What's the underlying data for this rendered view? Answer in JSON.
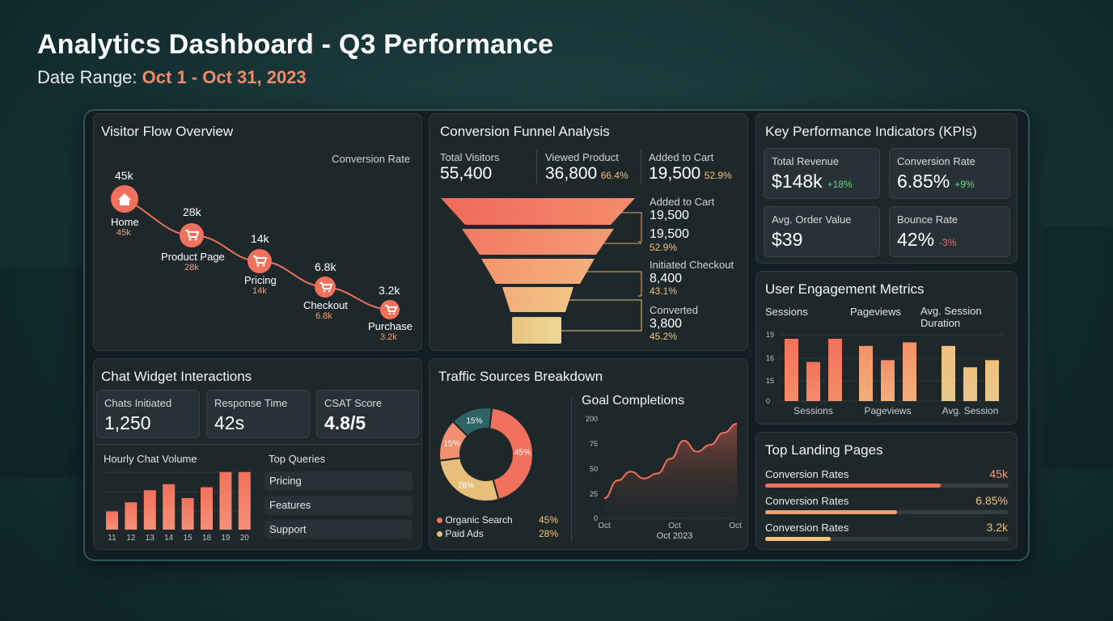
{
  "header": {
    "title": "Analytics Dashboard - Q3 Performance",
    "date_label": "Date Range:",
    "date_value": "Oct 1 - Oct 31, 2023"
  },
  "visitor_flow": {
    "title": "Visitor Flow Overview",
    "conversion_rate_label": "Conversion Rate",
    "steps": [
      {
        "name": "Home",
        "top": "45k",
        "sub": "45k",
        "icon": "home-icon"
      },
      {
        "name": "Product Page",
        "top": "28k",
        "sub": "28k",
        "icon": "cart-icon"
      },
      {
        "name": "Pricing",
        "top": "14k",
        "sub": "14k",
        "icon": "cart-icon"
      },
      {
        "name": "Checkout",
        "top": "6.8k",
        "sub": "6.8k",
        "icon": "cart-icon"
      },
      {
        "name": "Purchase",
        "top": "3.2k",
        "sub": "3.2k",
        "icon": "cart-icon"
      }
    ]
  },
  "funnel": {
    "title": "Conversion Funnel Analysis",
    "stats": [
      {
        "label": "Total Visitors",
        "value": "55,400",
        "pct": ""
      },
      {
        "label": "Viewed Product",
        "value": "36,800",
        "pct": "66.4%"
      },
      {
        "label": "Added to Cart",
        "value": "19,500",
        "pct": "52.9%"
      }
    ],
    "annotations": [
      {
        "label": "Added to Cart",
        "value1": "19,500",
        "value2": "19,500",
        "pct": "52.9%"
      },
      {
        "label": "Initiated Checkout",
        "value1": "8,400",
        "pct": "43.1%"
      },
      {
        "label": "Converted",
        "value1": "3,800",
        "pct": "45.2%"
      }
    ],
    "colors": [
      "#f2715c",
      "#f4866a",
      "#f5a27a",
      "#f2bc82",
      "#edd28a"
    ]
  },
  "kpis": {
    "title": "Key Performance Indicators (KPIs)",
    "cards": [
      {
        "label": "Total Revenue",
        "value": "$148k",
        "delta": "+18%",
        "tone": "green"
      },
      {
        "label": "Conversion Rate",
        "value": "6.85%",
        "delta": "+9%",
        "tone": "green"
      },
      {
        "label": "Avg. Order Value",
        "value": "$39",
        "delta": "",
        "tone": ""
      },
      {
        "label": "Bounce Rate",
        "value": "42%",
        "delta": "-3%",
        "tone": "red"
      }
    ]
  },
  "engagement": {
    "title": "User Engagement Metrics",
    "col_labels": [
      "Sessions",
      "Pageviews",
      "Avg. Session Duration"
    ],
    "col_label_lines": [
      "Sessions",
      "Pageviews",
      "Avg. Session",
      "Duration"
    ],
    "y_ticks": [
      "19",
      "16",
      "15",
      "0"
    ],
    "x_labels": [
      "Sessions",
      "Pageviews",
      "Avg. Session"
    ],
    "chart_data": {
      "type": "bar",
      "categories": [
        "Sessions",
        "Pageviews",
        "Avg. Session"
      ],
      "series": [
        {
          "values": [
            17.5,
            11,
            17.5
          ]
        },
        {
          "values": [
            15.5,
            11.5,
            16.5
          ]
        },
        {
          "values": [
            15.5,
            9.5,
            11.5
          ]
        }
      ],
      "ylim": [
        0,
        20
      ]
    }
  },
  "chat": {
    "title": "Chat Widget Interactions",
    "cards": [
      {
        "label": "Chats Initiated",
        "value": "1,250"
      },
      {
        "label": "Response Time",
        "value": "42s"
      },
      {
        "label": "CSAT Score",
        "value": "4.8/5"
      }
    ],
    "hourly_label": "Hourly Chat Volume",
    "top_queries_label": "Top Queries",
    "queries": [
      "Pricing",
      "Features",
      "Support"
    ],
    "chart_data": {
      "type": "bar",
      "categories": [
        "11",
        "12",
        "13",
        "14",
        "15",
        "18",
        "19",
        "20"
      ],
      "values": [
        3,
        4.5,
        6.5,
        7.5,
        5.2,
        7,
        9.5,
        9.5
      ],
      "ylim": [
        0,
        10
      ]
    }
  },
  "traffic": {
    "title": "Traffic Sources Breakdown",
    "legend": [
      {
        "name": "Organic Search",
        "value": "45%",
        "color": "#f2715c"
      },
      {
        "name": "Paid Ads",
        "value": "28%",
        "color": "#e8bf7a"
      }
    ],
    "chart_data": {
      "type": "pie",
      "categories": [
        "45%",
        "28%",
        "15%",
        "15%"
      ],
      "values": [
        45,
        28,
        15,
        15
      ],
      "colors": [
        "#f2715c",
        "#e8bf7a",
        "#f0906e",
        "#2f6467"
      ]
    }
  },
  "goals": {
    "title": "Goal Completions",
    "y_ticks": [
      "200",
      "75",
      "50",
      "25",
      "0"
    ],
    "x_ticks": [
      "Oct",
      "Oct",
      "Oct"
    ],
    "x_caption": "Oct 2023",
    "chart_data": {
      "type": "area",
      "x": [
        0,
        1,
        2,
        3,
        4,
        5,
        6,
        7,
        8,
        9,
        10
      ],
      "values": [
        20,
        38,
        47,
        40,
        45,
        60,
        78,
        67,
        74,
        86,
        95
      ],
      "ylim": [
        0,
        100
      ]
    }
  },
  "landing": {
    "title": "Top Landing Pages",
    "rows": [
      {
        "label": "Conversion Rates",
        "value": "45k",
        "fill": 0.72,
        "color": "#f2715c",
        "tone": "orange"
      },
      {
        "label": "Conversion Rates",
        "value": "6.85%",
        "fill": 0.54,
        "color": "#f0a070",
        "tone": "gold"
      },
      {
        "label": "Conversion Rates",
        "value": "3.2k",
        "fill": 0.27,
        "color": "#f2c37a",
        "tone": "gold"
      }
    ]
  }
}
